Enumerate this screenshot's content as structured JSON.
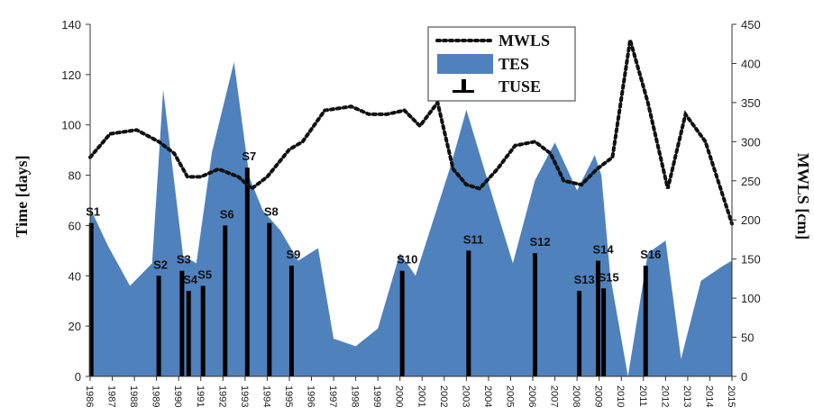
{
  "chart_data": {
    "type": "area",
    "ylabel": "Time [days]",
    "y2label": "MWLS [cm]",
    "ylim": [
      0,
      140
    ],
    "yticks": [
      0,
      20,
      40,
      60,
      80,
      100,
      120,
      140
    ],
    "y2lim": [
      0,
      450
    ],
    "y2ticks": [
      0,
      50,
      100,
      150,
      200,
      250,
      300,
      350,
      400,
      450
    ],
    "xlim": [
      1986,
      2015
    ],
    "xticks": [
      "1986",
      "1987",
      "1988",
      "1989",
      "1990",
      "1991",
      "1992",
      "1993",
      "1994",
      "1995",
      "1996",
      "1997",
      "1998",
      "1999",
      "2000",
      "2001",
      "2002",
      "2003",
      "2004",
      "2005",
      "2006",
      "2007",
      "2008",
      "2009",
      "2010",
      "2011",
      "2012",
      "2013",
      "2014",
      "2015"
    ],
    "legend": {
      "position": "top-right",
      "entries": [
        "MWLS",
        "TES",
        "TUSE"
      ]
    },
    "grid": false,
    "series": [
      {
        "name": "TES",
        "kind": "area",
        "axis": "left",
        "color": "#4f81bd",
        "x": [
          1986,
          1986.8,
          1987.8,
          1988.8,
          1989.3,
          1990.2,
          1990.8,
          1991.5,
          1992.5,
          1993.2,
          1993.8,
          1994.6,
          1995.4,
          1996.3,
          1997,
          1998,
          1999,
          2000,
          2000.7,
          2002.3,
          2003,
          2004.3,
          2005.1,
          2006.1,
          2007,
          2008,
          2008.8,
          2009.1,
          2009.3,
          2009.5,
          2010.3,
          2011.2,
          2012,
          2012.7,
          2013.6,
          2014.6,
          2015
        ],
        "values": [
          67,
          52,
          36,
          45,
          114,
          48,
          45,
          89,
          125,
          79,
          66,
          58,
          46,
          51,
          15,
          12,
          19,
          49,
          40,
          84,
          106,
          68,
          45,
          78,
          93,
          74,
          88,
          80,
          60,
          40,
          0,
          49,
          54,
          7,
          38,
          44,
          46
        ]
      },
      {
        "name": "MWLS",
        "kind": "line",
        "axis": "right",
        "color": "#111111",
        "x": [
          1986,
          1986.9,
          1988.1,
          1989.1,
          1989.8,
          1990.4,
          1991,
          1991.8,
          1992.7,
          1993.3,
          1994,
          1995,
          1995.6,
          1996.6,
          1997.8,
          1998.6,
          1999.4,
          2000.2,
          2000.9,
          2001.7,
          2002.4,
          2003,
          2003.6,
          2004.4,
          2005.2,
          2006.1,
          2006.8,
          2007.4,
          2008.2,
          2008.9,
          2009.6,
          2010.4,
          2011.2,
          2012.1,
          2012.9,
          2013.8,
          2014.6,
          2015
        ],
        "values": [
          280,
          310,
          315,
          300,
          285,
          255,
          255,
          265,
          255,
          240,
          255,
          290,
          300,
          340,
          345,
          335,
          335,
          340,
          320,
          350,
          265,
          245,
          240,
          265,
          295,
          300,
          285,
          250,
          245,
          265,
          280,
          430,
          350,
          240,
          335,
          300,
          230,
          195
        ]
      }
    ],
    "events": {
      "name": "TUSE",
      "axis": "left",
      "items": [
        {
          "label": "S1",
          "x": 1986.05,
          "value": 61
        },
        {
          "label": "S2",
          "x": 1989.1,
          "value": 40
        },
        {
          "label": "S3",
          "x": 1990.15,
          "value": 42
        },
        {
          "label": "S4",
          "x": 1990.45,
          "value": 34
        },
        {
          "label": "S5",
          "x": 1991.1,
          "value": 36
        },
        {
          "label": "S6",
          "x": 1992.1,
          "value": 60
        },
        {
          "label": "S7",
          "x": 1993.1,
          "value": 83
        },
        {
          "label": "S8",
          "x": 1994.1,
          "value": 61
        },
        {
          "label": "S9",
          "x": 1995.1,
          "value": 44
        },
        {
          "label": "S10",
          "x": 2000.1,
          "value": 42
        },
        {
          "label": "S11",
          "x": 2003.1,
          "value": 50
        },
        {
          "label": "S12",
          "x": 2006.1,
          "value": 49
        },
        {
          "label": "S13",
          "x": 2008.1,
          "value": 34
        },
        {
          "label": "S14",
          "x": 2008.95,
          "value": 46
        },
        {
          "label": "S15",
          "x": 2009.2,
          "value": 35
        },
        {
          "label": "S16",
          "x": 2011.1,
          "value": 44
        }
      ]
    }
  }
}
